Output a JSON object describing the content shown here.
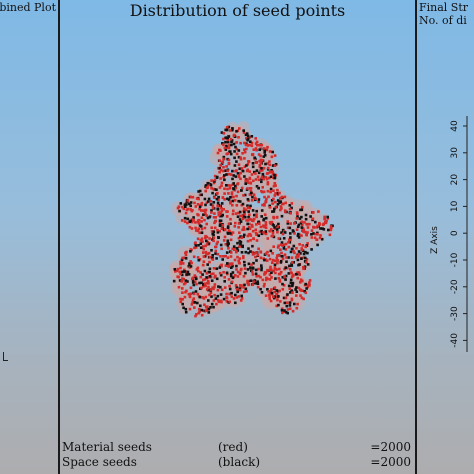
{
  "left_panel": {
    "title": "bined Plot"
  },
  "center_panel": {
    "title": "Distribution of seed points",
    "legend": [
      {
        "label": "Material seeds",
        "color_label": "(red)",
        "count": "=2000"
      },
      {
        "label": "Space seeds",
        "color_label": "(black)",
        "count": "=2000"
      }
    ]
  },
  "right_panel": {
    "title_line1": "Final Str",
    "title_line2": "No. of di",
    "axis_label": "Z Axis",
    "ticks": [
      "40",
      "30",
      "20",
      "10",
      "0",
      "-10",
      "-20",
      "-30",
      "-40"
    ]
  },
  "colors": {
    "material_seed": "#d42a2a",
    "space_seed": "#111111",
    "cloud_base": "#c9a9a9"
  }
}
